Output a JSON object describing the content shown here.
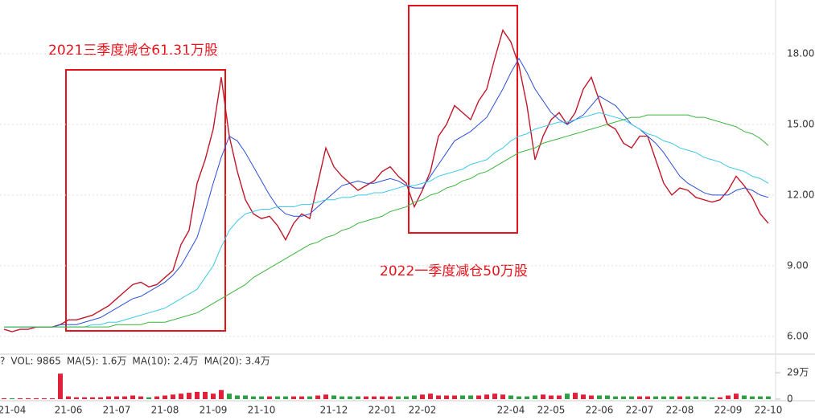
{
  "chart_data": {
    "type": "line",
    "annotations": [
      "2021三季度减仓61.31万股",
      "2022一季度减仓50万股"
    ],
    "categories": [
      null,
      "21-04",
      null,
      null,
      null,
      null,
      null,
      null,
      "21-06",
      null,
      null,
      null,
      null,
      null,
      "21-07",
      null,
      null,
      null,
      null,
      null,
      "21-08",
      null,
      null,
      null,
      null,
      null,
      "21-09",
      null,
      null,
      null,
      null,
      null,
      "21-10",
      null,
      null,
      null,
      null,
      null,
      null,
      null,
      null,
      "21-12",
      null,
      null,
      null,
      null,
      null,
      "22-01",
      null,
      null,
      null,
      null,
      "22-02",
      null,
      null,
      null,
      null,
      null,
      null,
      null,
      null,
      null,
      null,
      "22-04",
      null,
      null,
      null,
      null,
      "22-05",
      null,
      null,
      null,
      null,
      null,
      "22-06",
      null,
      null,
      null,
      null,
      "22-07",
      null,
      null,
      null,
      null,
      "22-08",
      null,
      null,
      null,
      null,
      null,
      "22-09",
      null,
      null,
      null,
      null,
      "22-10"
    ],
    "series": [
      {
        "color": "#c0182a",
        "values": [
          6.3,
          6.2,
          6.3,
          6.3,
          6.4,
          6.4,
          6.4,
          6.5,
          6.7,
          6.7,
          6.8,
          6.9,
          7.1,
          7.3,
          7.6,
          7.9,
          8.2,
          8.3,
          8.1,
          8.2,
          8.5,
          8.8,
          9.9,
          10.5,
          12.5,
          13.5,
          14.8,
          17.0,
          14.5,
          13.0,
          11.8,
          11.2,
          11.0,
          11.1,
          10.7,
          10.1,
          10.8,
          11.2,
          11.0,
          12.5,
          14.0,
          13.2,
          12.8,
          12.5,
          12.2,
          12.4,
          12.6,
          13.0,
          13.2,
          12.8,
          12.5,
          11.5,
          12.2,
          13.0,
          14.5,
          15.0,
          15.8,
          15.5,
          15.2,
          16.0,
          16.5,
          17.8,
          19.0,
          18.5,
          17.5,
          15.8,
          13.5,
          14.5,
          15.2,
          15.5,
          15.0,
          15.5,
          16.5,
          17.0,
          16.0,
          15.0,
          14.8,
          14.2,
          14.0,
          14.5,
          14.5,
          13.5,
          12.5,
          12.0,
          12.3,
          12.2,
          11.9,
          11.8,
          11.7,
          11.8,
          12.2,
          12.8,
          12.4,
          11.9,
          11.2,
          10.8
        ]
      },
      {
        "color": "#2d4fd6",
        "values": [
          6.4,
          6.4,
          6.4,
          6.4,
          6.4,
          6.4,
          6.4,
          6.5,
          6.5,
          6.5,
          6.6,
          6.7,
          6.8,
          7.0,
          7.2,
          7.4,
          7.6,
          7.7,
          7.9,
          8.1,
          8.3,
          8.6,
          9.0,
          9.6,
          10.2,
          11.3,
          12.5,
          13.6,
          14.5,
          14.3,
          13.8,
          13.2,
          12.6,
          12.0,
          11.5,
          11.2,
          11.1,
          11.1,
          11.2,
          11.5,
          11.8,
          12.1,
          12.4,
          12.5,
          12.6,
          12.5,
          12.5,
          12.6,
          12.7,
          12.6,
          12.4,
          12.3,
          12.3,
          12.8,
          13.3,
          13.8,
          14.3,
          14.5,
          14.7,
          15.0,
          15.3,
          15.9,
          16.5,
          17.2,
          17.8,
          17.2,
          16.5,
          16.0,
          15.5,
          15.2,
          15.0,
          15.2,
          15.4,
          15.8,
          16.2,
          16.0,
          15.8,
          15.4,
          15.0,
          14.8,
          14.5,
          14.2,
          13.8,
          13.3,
          12.8,
          12.5,
          12.3,
          12.1,
          12.0,
          12.0,
          12.0,
          12.2,
          12.3,
          12.2,
          12.0,
          11.9
        ]
      },
      {
        "color": "#3cc8e6",
        "values": [
          6.4,
          6.4,
          6.4,
          6.4,
          6.4,
          6.4,
          6.4,
          6.4,
          6.4,
          6.4,
          6.4,
          6.5,
          6.5,
          6.6,
          6.6,
          6.7,
          6.8,
          6.9,
          7.0,
          7.1,
          7.2,
          7.4,
          7.6,
          7.8,
          8.0,
          8.5,
          9.0,
          9.8,
          10.5,
          10.9,
          11.2,
          11.3,
          11.4,
          11.4,
          11.5,
          11.5,
          11.5,
          11.6,
          11.6,
          11.7,
          11.8,
          11.8,
          11.9,
          11.9,
          12.0,
          12.0,
          12.1,
          12.1,
          12.2,
          12.3,
          12.4,
          12.4,
          12.5,
          12.6,
          12.8,
          12.9,
          13.0,
          13.1,
          13.3,
          13.4,
          13.5,
          13.8,
          14.0,
          14.3,
          14.5,
          14.6,
          14.8,
          14.9,
          15.0,
          15.1,
          15.1,
          15.2,
          15.3,
          15.4,
          15.5,
          15.4,
          15.3,
          15.2,
          15.0,
          14.8,
          14.6,
          14.5,
          14.3,
          14.2,
          14.0,
          13.9,
          13.8,
          13.6,
          13.5,
          13.4,
          13.2,
          13.1,
          13.0,
          12.8,
          12.7,
          12.5
        ]
      },
      {
        "color": "#3cb43c",
        "values": [
          6.4,
          6.4,
          6.4,
          6.4,
          6.4,
          6.4,
          6.4,
          6.4,
          6.4,
          6.4,
          6.4,
          6.4,
          6.4,
          6.4,
          6.5,
          6.5,
          6.5,
          6.5,
          6.6,
          6.6,
          6.6,
          6.7,
          6.8,
          6.9,
          7.0,
          7.2,
          7.4,
          7.6,
          7.8,
          8.0,
          8.2,
          8.5,
          8.7,
          8.9,
          9.1,
          9.3,
          9.5,
          9.7,
          9.9,
          10.0,
          10.2,
          10.3,
          10.5,
          10.6,
          10.8,
          10.9,
          11.0,
          11.1,
          11.3,
          11.4,
          11.5,
          11.7,
          11.8,
          12.0,
          12.1,
          12.3,
          12.4,
          12.6,
          12.7,
          12.9,
          13.0,
          13.2,
          13.4,
          13.6,
          13.8,
          13.9,
          14.0,
          14.2,
          14.3,
          14.4,
          14.5,
          14.6,
          14.7,
          14.8,
          14.9,
          15.0,
          15.1,
          15.2,
          15.3,
          15.3,
          15.4,
          15.4,
          15.4,
          15.4,
          15.4,
          15.4,
          15.3,
          15.3,
          15.2,
          15.1,
          15.0,
          14.9,
          14.7,
          14.6,
          14.4,
          14.1
        ]
      }
    ],
    "ylim": [
      5.28,
      20.28
    ],
    "yticks": [
      {
        "value": 6,
        "label": "6.00"
      },
      {
        "value": 9,
        "label": "9.00"
      },
      {
        "value": 12,
        "label": "12.00"
      },
      {
        "value": 15,
        "label": "15.00"
      },
      {
        "value": 18,
        "label": "18.00"
      }
    ],
    "grid": true,
    "volume": {
      "legend": [
        "?",
        "VOL: 9865",
        "MA(5): 1.6万",
        "MA(10): 2.4万",
        "MA(20): 3.4万"
      ],
      "legend_colors": [
        "#333333",
        "#333333",
        "#333333",
        "#e0213a",
        "#2d4fd6"
      ],
      "up_color": "#e0213a",
      "down_color": "#2ea043",
      "values": [
        1,
        1,
        1,
        1,
        1,
        1,
        1,
        28,
        3,
        2,
        2,
        2,
        2,
        3,
        3,
        3,
        4,
        3,
        2,
        3,
        4,
        5,
        6,
        7,
        8,
        8,
        6,
        10,
        6,
        4,
        4,
        3,
        3,
        3,
        3,
        3,
        3,
        3,
        3,
        4,
        5,
        4,
        3,
        3,
        3,
        3,
        3,
        3,
        3,
        3,
        3,
        4,
        5,
        6,
        4,
        4,
        4,
        4,
        4,
        4,
        5,
        6,
        5,
        4,
        3,
        3,
        4,
        5,
        4,
        4,
        6,
        7,
        5,
        4,
        4,
        4,
        3,
        3,
        3,
        3,
        3,
        3,
        3,
        3,
        3,
        3,
        3,
        3,
        2,
        2,
        4,
        6,
        4,
        3,
        3,
        3
      ],
      "ylim": [
        0,
        30
      ],
      "yticks": [
        {
          "value": 29,
          "label": "29万"
        },
        0
      ]
    }
  }
}
